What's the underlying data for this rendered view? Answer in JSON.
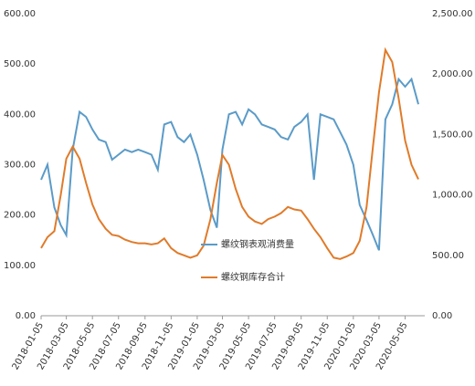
{
  "chart_data": {
    "type": "line",
    "x": [
      "2018-01-05",
      "2018-01-20",
      "2018-02-05",
      "2018-02-20",
      "2018-03-05",
      "2018-03-20",
      "2018-04-05",
      "2018-04-20",
      "2018-05-05",
      "2018-05-20",
      "2018-06-05",
      "2018-06-20",
      "2018-07-05",
      "2018-07-20",
      "2018-08-05",
      "2018-08-20",
      "2018-09-05",
      "2018-09-20",
      "2018-10-05",
      "2018-10-20",
      "2018-11-05",
      "2018-11-20",
      "2018-12-05",
      "2018-12-20",
      "2019-01-05",
      "2019-01-20",
      "2019-02-05",
      "2019-02-20",
      "2019-03-05",
      "2019-03-20",
      "2019-04-05",
      "2019-04-20",
      "2019-05-05",
      "2019-05-20",
      "2019-06-05",
      "2019-06-20",
      "2019-07-05",
      "2019-07-20",
      "2019-08-05",
      "2019-08-20",
      "2019-09-05",
      "2019-09-20",
      "2019-10-05",
      "2019-10-20",
      "2019-11-05",
      "2019-11-20",
      "2019-12-05",
      "2019-12-20",
      "2020-01-05",
      "2020-01-20",
      "2020-02-05",
      "2020-02-20",
      "2020-03-05",
      "2020-03-20",
      "2020-04-05",
      "2020-04-20",
      "2020-05-05",
      "2020-05-20",
      "2020-06-05"
    ],
    "xlim": [
      "2018-01-05",
      "2020-06-20"
    ],
    "xticks": [
      "2018-01-05",
      "2018-03-05",
      "2018-05-05",
      "2018-07-05",
      "2018-09-05",
      "2018-11-05",
      "2019-01-05",
      "2019-03-05",
      "2019-05-05",
      "2019-07-05",
      "2019-09-05",
      "2019-11-05",
      "2020-01-05",
      "2020-03-05",
      "2020-05-05"
    ],
    "ylim": [
      0,
      600
    ],
    "yticks": [
      {
        "value": 0,
        "label": "0.00"
      },
      {
        "value": 100,
        "label": "100.00"
      },
      {
        "value": 200,
        "label": "200.00"
      },
      {
        "value": 300,
        "label": "300.00"
      },
      {
        "value": 400,
        "label": "400.00"
      },
      {
        "value": 500,
        "label": "500.00"
      },
      {
        "value": 600,
        "label": "600.00"
      }
    ],
    "y2lim": [
      0,
      2500
    ],
    "y2ticks": [
      {
        "value": 0,
        "label": "0.00"
      },
      {
        "value": 500,
        "label": "500.00"
      },
      {
        "value": 1000,
        "label": "1,000.00"
      },
      {
        "value": 1500,
        "label": "1,500.00"
      },
      {
        "value": 2000,
        "label": "2,000.00"
      },
      {
        "value": 2500,
        "label": "2,500.00"
      }
    ],
    "legend": "center",
    "series": [
      {
        "name": "螺纹钢表观消费量",
        "color": "#5b9bc8",
        "values": [
          270,
          300,
          215,
          180,
          160,
          330,
          405,
          395,
          370,
          350,
          345,
          310,
          320,
          330,
          325,
          330,
          325,
          320,
          290,
          380,
          385,
          355,
          345,
          360,
          320,
          270,
          210,
          175,
          330,
          400,
          405,
          380,
          410,
          400,
          380,
          375,
          370,
          355,
          350,
          375,
          385,
          400,
          270,
          400,
          395,
          390,
          365,
          340,
          300,
          220,
          190,
          160,
          130,
          390,
          420,
          470,
          455,
          470,
          420
        ]
      },
      {
        "name": "螺纹钢库存合计",
        "color": "#e07b2a",
        "axis": "y2",
        "values": [
          560,
          650,
          700,
          1000,
          1300,
          1400,
          1300,
          1100,
          920,
          800,
          720,
          670,
          660,
          630,
          610,
          600,
          600,
          590,
          600,
          640,
          560,
          520,
          500,
          480,
          500,
          580,
          800,
          1100,
          1330,
          1250,
          1050,
          900,
          820,
          780,
          760,
          800,
          820,
          850,
          900,
          880,
          870,
          800,
          720,
          650,
          560,
          480,
          470,
          490,
          520,
          620,
          900,
          1400,
          1850,
          2200,
          2100,
          1800,
          1450,
          1250,
          1130
        ]
      }
    ]
  }
}
